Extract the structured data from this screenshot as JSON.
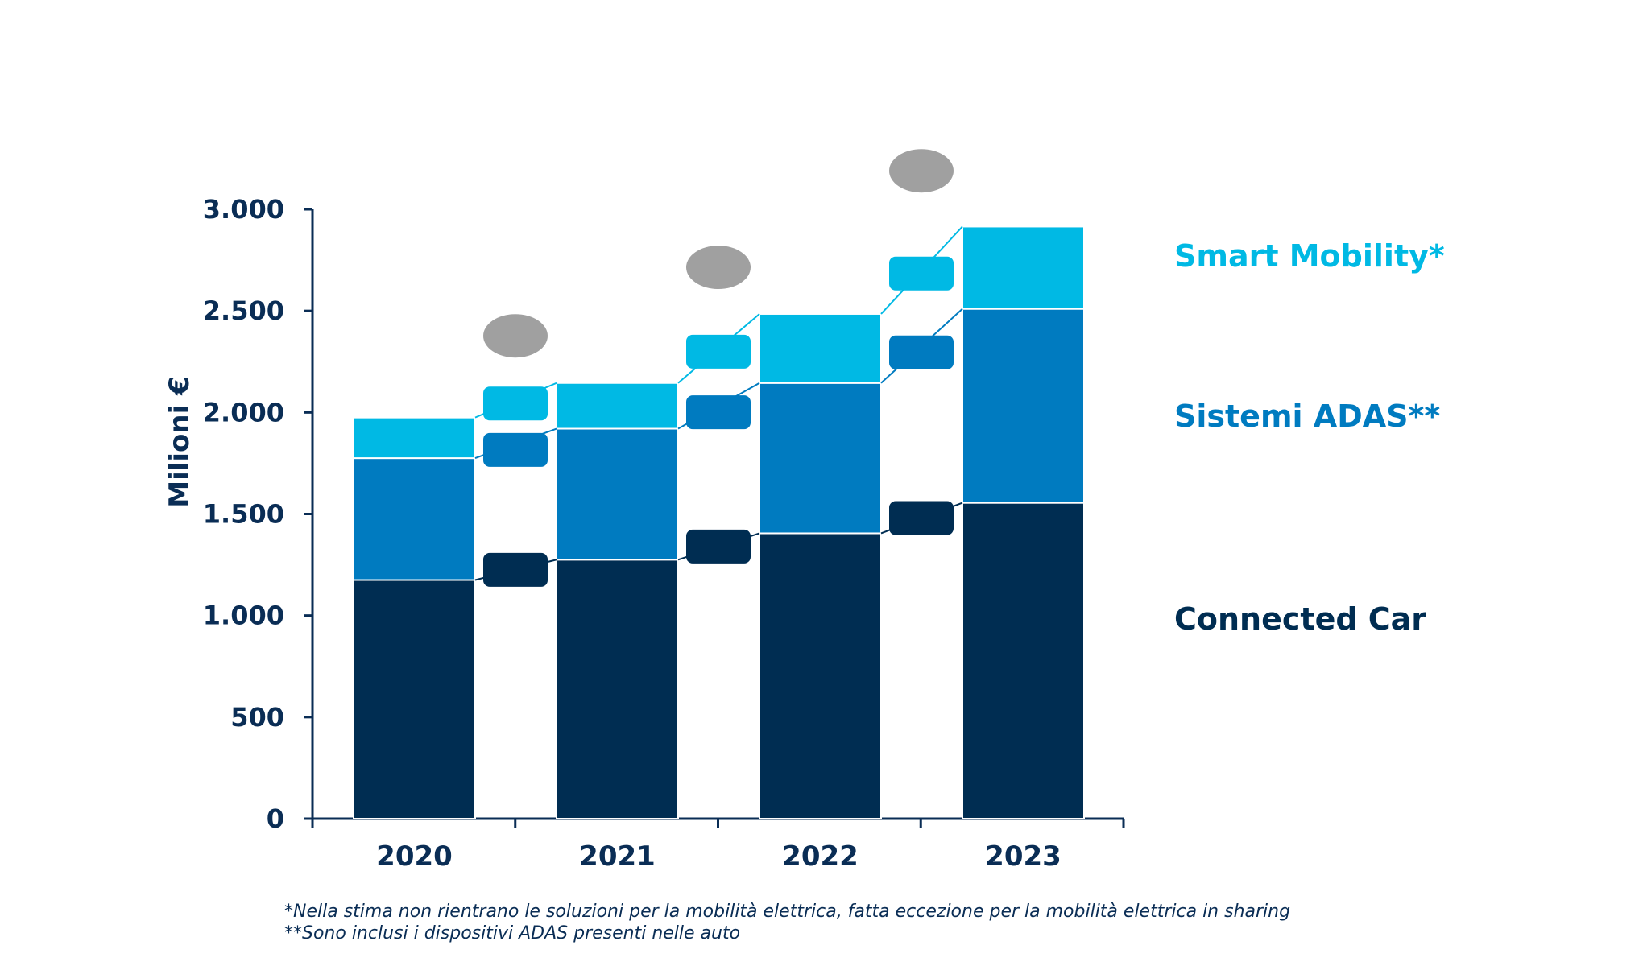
{
  "chart_data": {
    "type": "bar",
    "stacked": true,
    "categories": [
      "2020",
      "2021",
      "2022",
      "2023"
    ],
    "series": [
      {
        "name": "Connected Car",
        "color": "#002d52",
        "values": [
          1175,
          1275,
          1405,
          1555
        ]
      },
      {
        "name": "Sistemi ADAS**",
        "color": "#007bc0",
        "values": [
          600,
          645,
          740,
          955
        ]
      },
      {
        "name": "Smart Mobility*",
        "color": "#00b9e4",
        "values": [
          200,
          225,
          340,
          405
        ]
      }
    ],
    "ylabel": "Milioni €",
    "xlabel": "",
    "ylim": [
      0,
      3000
    ],
    "yticks": [
      0,
      500,
      1000,
      1500,
      2000,
      2500,
      3000
    ],
    "ytick_labels": [
      "0",
      "500",
      "1.000",
      "1.500",
      "2.000",
      "2.500",
      "3.000"
    ],
    "grid": false,
    "legend_position": "right",
    "growth_marker_color": "#a0a0a0"
  },
  "footnotes": [
    "*Nella stima non rientrano le soluzioni per la mobilità elettrica, fatta eccezione per la mobilità elettrica in sharing",
    "**Sono inclusi i dispositivi ADAS presenti nelle auto"
  ]
}
